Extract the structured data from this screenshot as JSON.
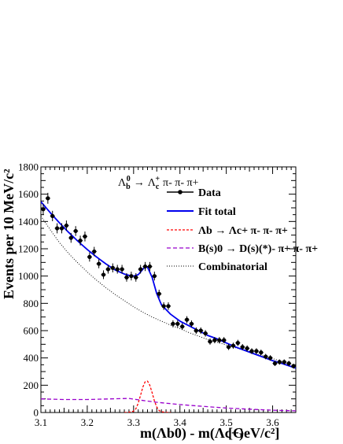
{
  "chart_data": {
    "type": "scatter",
    "title": "Λb0 → Λc+ π- π- π+",
    "title_parts": {
      "lambda": "Λ",
      "lambda_sub": "b",
      "lambda_sup": "0",
      "arrow": "→",
      "lambdac": "Λ",
      "lambdac_sub": "c",
      "lambdac_sup": "+",
      "pions": "π- π- π+"
    },
    "ylabel": "Events per 10 MeV/c²",
    "xlabel": "m(Λb0) - m(Λc+)",
    "xunit": "[GeV/c²]",
    "xlim": [
      3.1,
      3.65
    ],
    "ylim": [
      0,
      1800
    ],
    "x_ticks": [
      "3.1",
      "3.2",
      "3.3",
      "3.4",
      "3.5",
      "3.6"
    ],
    "y_ticks": [
      "0",
      "200",
      "400",
      "600",
      "800",
      "1000",
      "1200",
      "1400",
      "1600",
      "1800"
    ],
    "legend_position": "top-right",
    "legend": {
      "data": "Data",
      "fit_total": "Fit total",
      "lambda_b": "Λb → Λc+ π- π- π+",
      "b_s": "B(s)0 → D(s)(*)- π+ π- π+",
      "combinatorial": "Combinatorial"
    },
    "colors": {
      "data": "#000000",
      "fit_total": "#0000ee",
      "lambda_b": "#ff0000",
      "b_s": "#9900cc",
      "combinatorial": "#000000"
    },
    "series": [
      {
        "name": "Data",
        "style": "points-with-error-bars",
        "x": [
          3.105,
          3.115,
          3.125,
          3.135,
          3.145,
          3.155,
          3.165,
          3.175,
          3.185,
          3.195,
          3.205,
          3.215,
          3.225,
          3.235,
          3.245,
          3.255,
          3.265,
          3.275,
          3.285,
          3.295,
          3.305,
          3.315,
          3.325,
          3.335,
          3.345,
          3.355,
          3.365,
          3.375,
          3.385,
          3.395,
          3.405,
          3.415,
          3.425,
          3.435,
          3.445,
          3.455,
          3.465,
          3.475,
          3.485,
          3.495,
          3.505,
          3.515,
          3.525,
          3.535,
          3.545,
          3.555,
          3.565,
          3.575,
          3.585,
          3.595,
          3.605,
          3.615,
          3.625,
          3.635,
          3.645
        ],
        "y": [
          1490,
          1570,
          1440,
          1350,
          1350,
          1370,
          1280,
          1330,
          1260,
          1290,
          1140,
          1180,
          1090,
          1010,
          1050,
          1060,
          1050,
          1050,
          990,
          1000,
          990,
          1050,
          1070,
          1070,
          1000,
          870,
          780,
          780,
          650,
          650,
          630,
          680,
          650,
          600,
          600,
          580,
          520,
          530,
          530,
          530,
          480,
          490,
          510,
          480,
          470,
          450,
          450,
          440,
          410,
          400,
          360,
          370,
          370,
          360,
          340
        ],
        "yerr": [
          39,
          40,
          38,
          37,
          37,
          37,
          36,
          36,
          36,
          36,
          34,
          34,
          33,
          32,
          32,
          33,
          32,
          32,
          31,
          32,
          31,
          32,
          33,
          33,
          32,
          30,
          28,
          28,
          26,
          26,
          25,
          26,
          25,
          24,
          24,
          24,
          23,
          23,
          23,
          23,
          22,
          22,
          23,
          22,
          22,
          21,
          21,
          21,
          20,
          20,
          19,
          19,
          19,
          19,
          18
        ]
      },
      {
        "name": "Fit total",
        "style": "solid",
        "x": [
          3.1,
          3.12,
          3.14,
          3.16,
          3.18,
          3.2,
          3.22,
          3.24,
          3.26,
          3.28,
          3.29,
          3.3,
          3.31,
          3.32,
          3.325,
          3.33,
          3.34,
          3.35,
          3.36,
          3.38,
          3.4,
          3.42,
          3.44,
          3.46,
          3.48,
          3.5,
          3.52,
          3.54,
          3.56,
          3.58,
          3.6,
          3.62,
          3.65
        ],
        "y": [
          1545,
          1465,
          1390,
          1320,
          1255,
          1195,
          1140,
          1090,
          1045,
          1015,
          1005,
          1000,
          1010,
          1050,
          1070,
          1065,
          990,
          870,
          790,
          720,
          670,
          635,
          600,
          565,
          540,
          510,
          480,
          455,
          430,
          405,
          380,
          360,
          325
        ]
      },
      {
        "name": "Λb → Λc+ π- π- π+",
        "style": "dashed",
        "x": [
          3.28,
          3.29,
          3.3,
          3.305,
          3.31,
          3.315,
          3.32,
          3.325,
          3.33,
          3.335,
          3.34,
          3.345,
          3.35,
          3.355,
          3.36,
          3.37,
          3.38
        ],
        "y": [
          0,
          1,
          10,
          28,
          68,
          127,
          187,
          225,
          230,
          200,
          145,
          85,
          40,
          15,
          5,
          1,
          0
        ]
      },
      {
        "name": "B(s)0 → D(s)(*)- π+ π- π+",
        "style": "dashed",
        "x": [
          3.1,
          3.15,
          3.2,
          3.25,
          3.29,
          3.3,
          3.32,
          3.35,
          3.4,
          3.45,
          3.5,
          3.55,
          3.6,
          3.65
        ],
        "y": [
          100,
          95,
          95,
          100,
          103,
          98,
          88,
          75,
          58,
          45,
          33,
          24,
          17,
          12
        ]
      },
      {
        "name": "Combinatorial",
        "style": "dotted",
        "x": [
          3.1,
          3.12,
          3.14,
          3.16,
          3.18,
          3.2,
          3.22,
          3.24,
          3.26,
          3.28,
          3.3,
          3.32,
          3.34,
          3.36,
          3.38,
          3.4,
          3.42,
          3.44,
          3.46,
          3.48,
          3.5,
          3.52,
          3.54,
          3.56,
          3.58,
          3.6,
          3.62,
          3.65
        ],
        "y": [
          1440,
          1340,
          1245,
          1165,
          1095,
          1030,
          970,
          915,
          865,
          820,
          775,
          735,
          700,
          670,
          640,
          615,
          585,
          560,
          535,
          515,
          495,
          475,
          455,
          435,
          415,
          395,
          375,
          340
        ]
      }
    ]
  }
}
